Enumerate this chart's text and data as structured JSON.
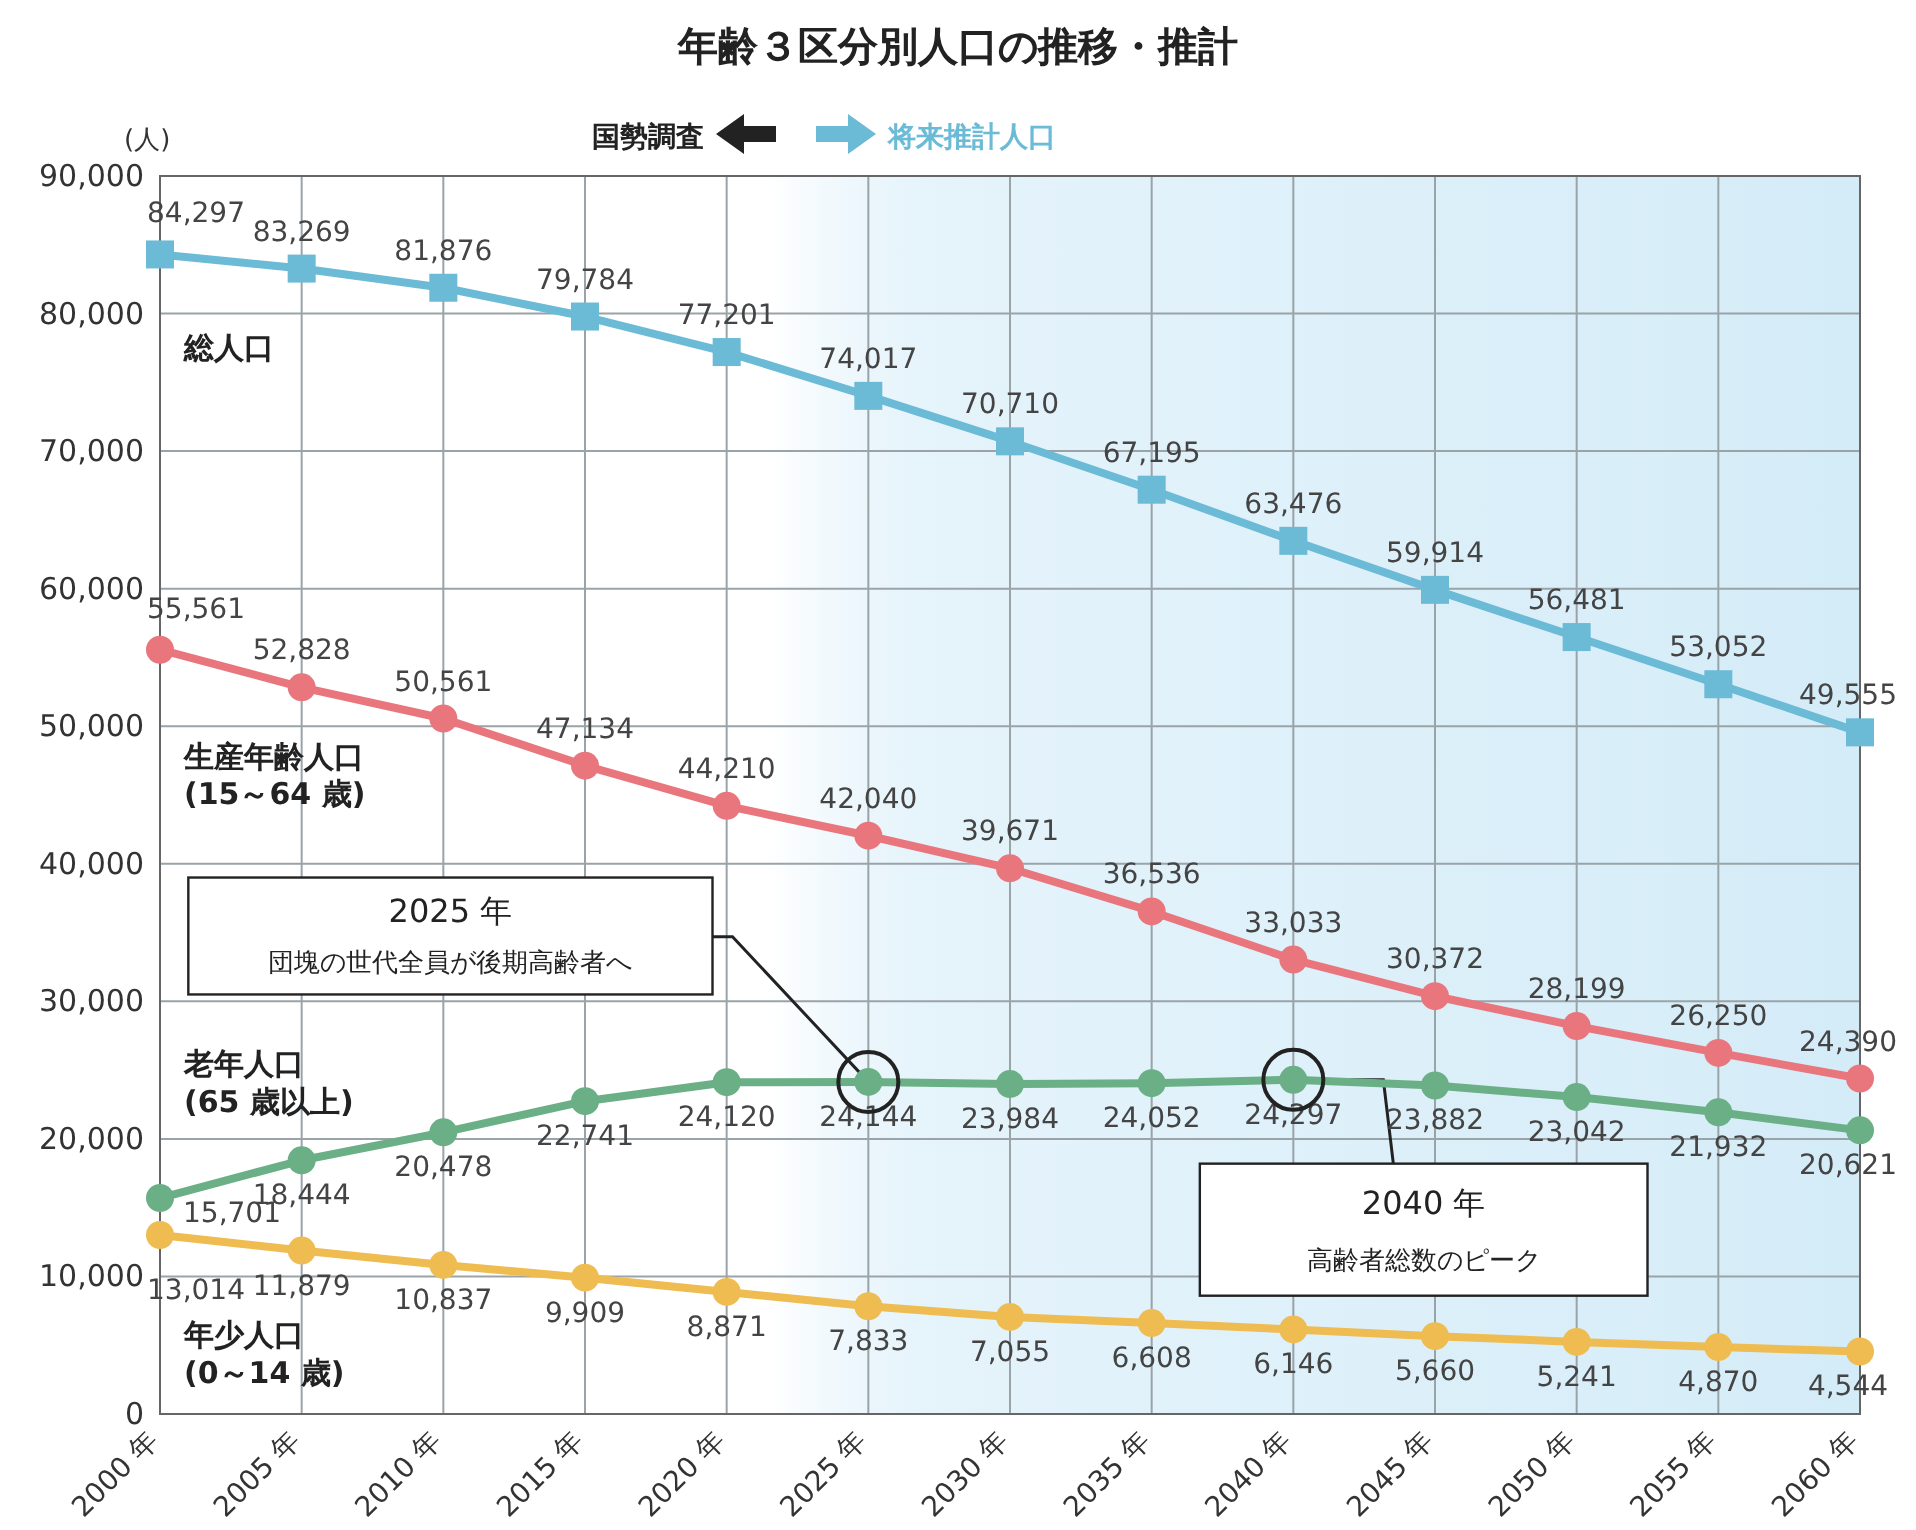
{
  "chart_data": {
    "type": "line",
    "title": "年齢３区分別人口の推移・推計",
    "ylabel": "(人)",
    "x": [
      2000,
      2005,
      2010,
      2015,
      2020,
      2025,
      2030,
      2035,
      2040,
      2045,
      2050,
      2055,
      2060
    ],
    "xlim": [
      2000,
      2060
    ],
    "xticks": [
      {
        "value": 2000,
        "label": "2000 年"
      },
      {
        "value": 2005,
        "label": "2005 年"
      },
      {
        "value": 2010,
        "label": "2010 年"
      },
      {
        "value": 2015,
        "label": "2015 年"
      },
      {
        "value": 2020,
        "label": "2020 年"
      },
      {
        "value": 2025,
        "label": "2025 年"
      },
      {
        "value": 2030,
        "label": "2030 年"
      },
      {
        "value": 2035,
        "label": "2035 年"
      },
      {
        "value": 2040,
        "label": "2040 年"
      },
      {
        "value": 2045,
        "label": "2045 年"
      },
      {
        "value": 2050,
        "label": "2050 年"
      },
      {
        "value": 2055,
        "label": "2055 年"
      },
      {
        "value": 2060,
        "label": "2060 年"
      }
    ],
    "ylim": [
      0,
      90000
    ],
    "yticks": [
      {
        "value": 0,
        "label": "0"
      },
      {
        "value": 10000,
        "label": "10,000"
      },
      {
        "value": 20000,
        "label": "20,000"
      },
      {
        "value": 30000,
        "label": "30,000"
      },
      {
        "value": 40000,
        "label": "40,000"
      },
      {
        "value": 50000,
        "label": "50,000"
      },
      {
        "value": 60000,
        "label": "60,000"
      },
      {
        "value": 70000,
        "label": "70,000"
      },
      {
        "value": 80000,
        "label": "80,000"
      },
      {
        "value": 90000,
        "label": "90,000"
      }
    ],
    "grid": true,
    "series": [
      {
        "name": "総人口",
        "color": "#6bbad6",
        "marker": "square",
        "values": [
          84297,
          83269,
          81876,
          79784,
          77201,
          74017,
          70710,
          67195,
          63476,
          59914,
          56481,
          53052,
          49555
        ],
        "value_labels": [
          "84,297",
          "83,269",
          "81,876",
          "79,784",
          "77,201",
          "74,017",
          "70,710",
          "67,195",
          "63,476",
          "59,914",
          "56,481",
          "53,052",
          "49,555"
        ]
      },
      {
        "name": "生産年齢人口\n(15～64 歳)",
        "color": "#e8767c",
        "marker": "circle",
        "values": [
          55561,
          52828,
          50561,
          47134,
          44210,
          42040,
          39671,
          36536,
          33033,
          30372,
          28199,
          26250,
          24390
        ],
        "value_labels": [
          "55,561",
          "52,828",
          "50,561",
          "47,134",
          "44,210",
          "42,040",
          "39,671",
          "36,536",
          "33,033",
          "30,372",
          "28,199",
          "26,250",
          "24,390"
        ]
      },
      {
        "name": "老年人口\n(65 歳以上)",
        "color": "#6aaf85",
        "marker": "circle",
        "values": [
          15701,
          18444,
          20478,
          22741,
          24120,
          24144,
          23984,
          24052,
          24297,
          23882,
          23042,
          21932,
          20621
        ],
        "value_labels": [
          "15,701",
          "18,444",
          "20,478",
          "22,741",
          "24,120",
          "24,144",
          "23,984",
          "24,052",
          "24,297",
          "23,882",
          "23,042",
          "21,932",
          "20,621"
        ]
      },
      {
        "name": "年少人口\n(0～14 歳)",
        "color": "#eebc50",
        "marker": "circle",
        "values": [
          13014,
          11879,
          10837,
          9909,
          8871,
          7833,
          7055,
          6608,
          6146,
          5660,
          5241,
          4870,
          4544
        ],
        "value_labels": [
          "13,014",
          "11,879",
          "10,837",
          "9,909",
          "8,871",
          "7,833",
          "7,055",
          "6,608",
          "6,146",
          "5,660",
          "5,241",
          "4,870",
          "4,544"
        ]
      }
    ],
    "bands": [
      {
        "axis": "x",
        "from": 2021.5,
        "to": 2060,
        "color": "#d4ecf8"
      }
    ],
    "annotations": [
      "国勢調査",
      "将来推計人口",
      "2025 年",
      "団塊の世代全員が後期高齢者へ",
      {
        "text": "2040 年",
        "x": 2040,
        "y": 24297
      },
      "高齢者総数のピーク"
    ]
  }
}
